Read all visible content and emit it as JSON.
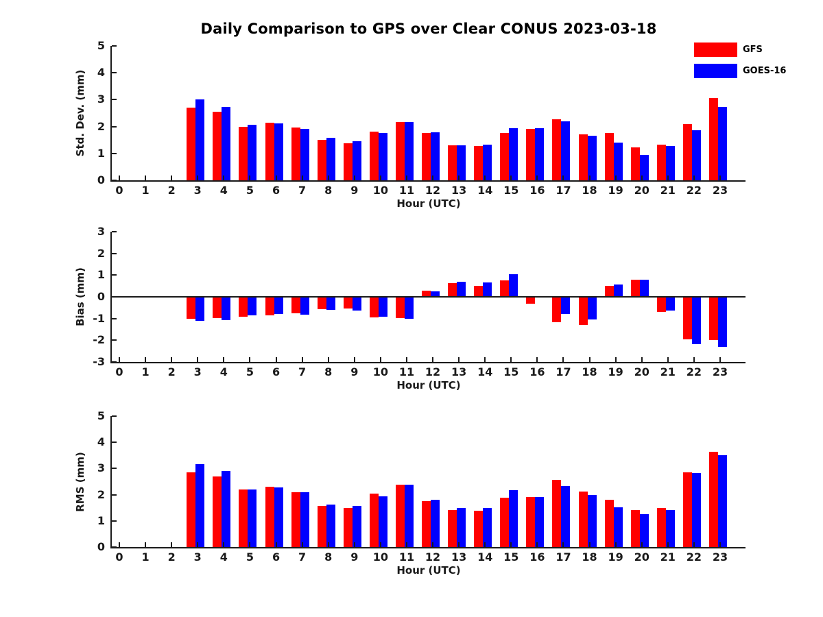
{
  "title": "Daily Comparison to GPS over Clear CONUS 2023-03-18",
  "legend": {
    "items": [
      {
        "label": "GFS",
        "color": "#ff0000"
      },
      {
        "label": "GOES-16",
        "color": "#0000ff"
      }
    ]
  },
  "chart_data": [
    {
      "type": "bar",
      "ylabel": "Std. Dev. (mm)",
      "xlabel": "Hour (UTC)",
      "ylim": [
        0,
        5
      ],
      "yticks": [
        0,
        1,
        2,
        3,
        4,
        5
      ],
      "grid": false,
      "categories": [
        "0",
        "1",
        "2",
        "3",
        "4",
        "5",
        "6",
        "7",
        "8",
        "9",
        "10",
        "11",
        "12",
        "13",
        "14",
        "15",
        "16",
        "17",
        "18",
        "19",
        "20",
        "21",
        "22",
        "23"
      ],
      "series": [
        {
          "name": "GFS",
          "color": "#ff0000",
          "values": [
            null,
            null,
            null,
            2.7,
            2.55,
            2.0,
            2.15,
            1.97,
            1.5,
            1.38,
            1.82,
            2.18,
            1.77,
            1.3,
            1.28,
            1.75,
            1.92,
            2.28,
            1.72,
            1.75,
            1.22,
            1.33,
            2.1,
            3.05
          ]
        },
        {
          "name": "GOES-16",
          "color": "#0000ff",
          "values": [
            null,
            null,
            null,
            3.0,
            2.73,
            2.06,
            2.12,
            1.92,
            1.57,
            1.46,
            1.76,
            2.18,
            1.79,
            1.31,
            1.33,
            1.93,
            1.93,
            2.2,
            1.67,
            1.41,
            0.95,
            1.28,
            1.87,
            2.72
          ]
        }
      ]
    },
    {
      "type": "bar",
      "ylabel": "Bias (mm)",
      "xlabel": "Hour (UTC)",
      "ylim": [
        -3,
        3
      ],
      "yticks": [
        -3,
        -2,
        -1,
        0,
        1,
        2,
        3
      ],
      "zero_line": true,
      "grid": false,
      "categories": [
        "0",
        "1",
        "2",
        "3",
        "4",
        "5",
        "6",
        "7",
        "8",
        "9",
        "10",
        "11",
        "12",
        "13",
        "14",
        "15",
        "16",
        "17",
        "18",
        "19",
        "20",
        "21",
        "22",
        "23"
      ],
      "series": [
        {
          "name": "GFS",
          "color": "#ff0000",
          "values": [
            null,
            null,
            null,
            -1.02,
            -0.98,
            -0.93,
            -0.84,
            -0.76,
            -0.56,
            -0.53,
            -0.95,
            -0.98,
            0.27,
            0.63,
            0.5,
            0.75,
            -0.3,
            -1.16,
            -1.28,
            0.51,
            0.78,
            -0.69,
            -1.96,
            -1.98
          ]
        },
        {
          "name": "GOES-16",
          "color": "#0000ff",
          "values": [
            null,
            null,
            null,
            -1.12,
            -1.08,
            -0.86,
            -0.79,
            -0.82,
            -0.6,
            -0.64,
            -0.91,
            -1.0,
            0.26,
            0.7,
            0.65,
            1.04,
            0.0,
            -0.79,
            -1.03,
            0.58,
            0.78,
            -0.63,
            -2.17,
            -2.29
          ]
        }
      ]
    },
    {
      "type": "bar",
      "ylabel": "RMS (mm)",
      "xlabel": "Hour (UTC)",
      "ylim": [
        0,
        5
      ],
      "yticks": [
        0,
        1,
        2,
        3,
        4,
        5
      ],
      "grid": false,
      "categories": [
        "0",
        "1",
        "2",
        "3",
        "4",
        "5",
        "6",
        "7",
        "8",
        "9",
        "10",
        "11",
        "12",
        "13",
        "14",
        "15",
        "16",
        "17",
        "18",
        "19",
        "20",
        "21",
        "22",
        "23"
      ],
      "series": [
        {
          "name": "GFS",
          "color": "#ff0000",
          "values": [
            null,
            null,
            null,
            2.85,
            2.7,
            2.2,
            2.31,
            2.1,
            1.56,
            1.48,
            2.03,
            2.38,
            1.76,
            1.42,
            1.39,
            1.88,
            1.91,
            2.56,
            2.11,
            1.81,
            1.42,
            1.48,
            2.85,
            3.64
          ]
        },
        {
          "name": "GOES-16",
          "color": "#0000ff",
          "values": [
            null,
            null,
            null,
            3.17,
            2.9,
            2.2,
            2.27,
            2.1,
            1.62,
            1.56,
            1.94,
            2.38,
            1.8,
            1.48,
            1.48,
            2.17,
            1.91,
            2.33,
            1.98,
            1.53,
            1.25,
            1.42,
            2.83,
            3.52
          ]
        }
      ]
    }
  ]
}
